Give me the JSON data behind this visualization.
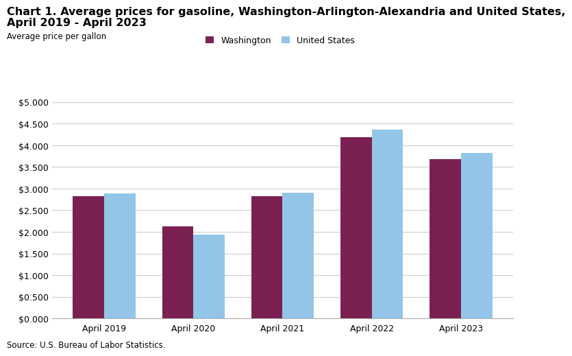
{
  "title_line1": "Chart 1. Average prices for gasoline, Washington-Arlington-Alexandria and United States,",
  "title_line2": "April 2019 - April 2023",
  "ylabel": "Average price per gallon",
  "categories": [
    "April 2019",
    "April 2020",
    "April 2021",
    "April 2022",
    "April 2023"
  ],
  "washington_values": [
    2.82,
    2.13,
    2.82,
    4.19,
    3.68
  ],
  "us_values": [
    2.89,
    1.94,
    2.91,
    4.36,
    3.83
  ],
  "washington_color": "#7B2151",
  "us_color": "#92C5E8",
  "washington_label": "Washington",
  "us_label": "United States",
  "ylim": [
    0,
    5.0
  ],
  "yticks": [
    0.0,
    0.5,
    1.0,
    1.5,
    2.0,
    2.5,
    3.0,
    3.5,
    4.0,
    4.5,
    5.0
  ],
  "source_text": "Source: U.S. Bureau of Labor Statistics.",
  "bar_width": 0.35,
  "background_color": "#ffffff",
  "grid_color": "#cccccc",
  "title_fontsize": 11.5,
  "axis_label_fontsize": 8.5,
  "tick_fontsize": 9,
  "legend_fontsize": 9,
  "source_fontsize": 8.5
}
